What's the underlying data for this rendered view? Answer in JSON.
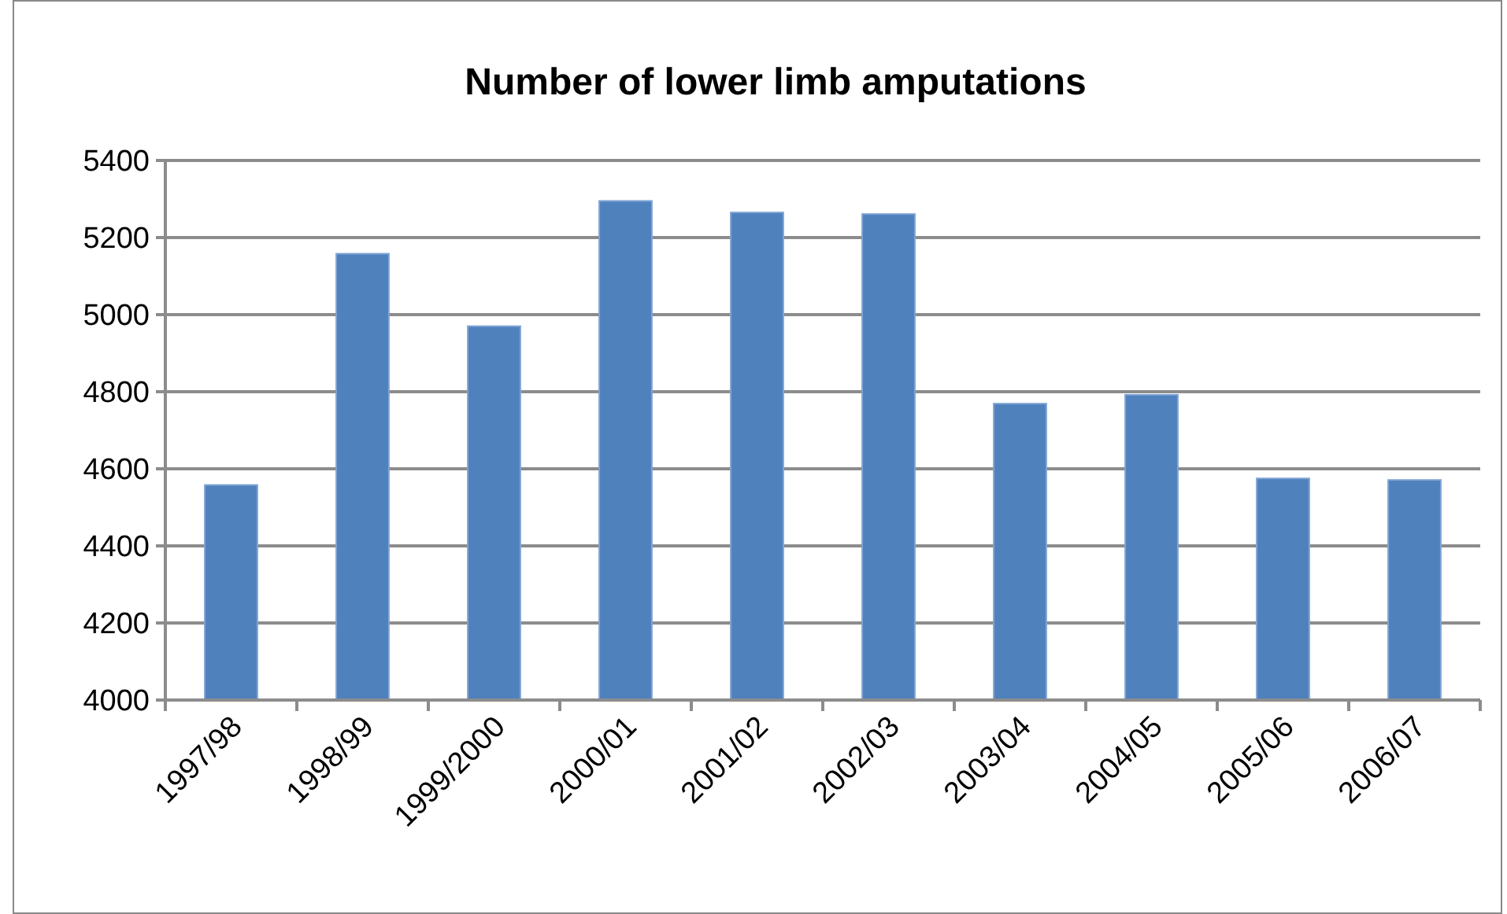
{
  "chart_data": {
    "type": "bar",
    "title": "Number of lower limb amputations",
    "categories": [
      "1997/98",
      "1998/99",
      "1999/2000",
      "2000/01",
      "2001/02",
      "2002/03",
      "2003/04",
      "2004/05",
      "2005/06",
      "2006/07"
    ],
    "values": [
      4558,
      5158,
      4970,
      5295,
      5265,
      5261,
      4769,
      4792,
      4575,
      4571
    ],
    "color": "#4f81bd",
    "ylim": [
      4000,
      5400
    ],
    "yticks": [
      4000,
      4200,
      4400,
      4600,
      4800,
      5000,
      5200,
      5400
    ],
    "grid": "y"
  }
}
